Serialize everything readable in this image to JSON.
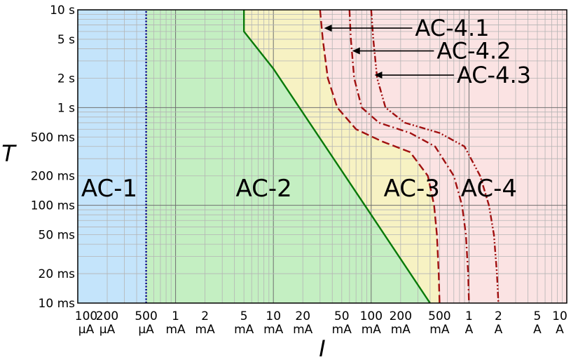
{
  "chart_data": {
    "type": "area",
    "title": "",
    "xlabel": "I",
    "ylabel": "T",
    "x_scale": "log",
    "y_scale": "log",
    "xlim_mA": [
      0.1,
      10000
    ],
    "ylim_ms": [
      10,
      10000
    ],
    "x_ticks": [
      {
        "value_mA": 0.1,
        "line1": "100",
        "line2": "μA"
      },
      {
        "value_mA": 0.2,
        "line1": "200",
        "line2": "μA"
      },
      {
        "value_mA": 0.5,
        "line1": "500",
        "line2": "μA"
      },
      {
        "value_mA": 1,
        "line1": "1",
        "line2": "mA"
      },
      {
        "value_mA": 2,
        "line1": "2",
        "line2": "mA"
      },
      {
        "value_mA": 5,
        "line1": "5",
        "line2": "mA"
      },
      {
        "value_mA": 10,
        "line1": "10",
        "line2": "mA"
      },
      {
        "value_mA": 20,
        "line1": "20",
        "line2": "mA"
      },
      {
        "value_mA": 50,
        "line1": "50",
        "line2": "mA"
      },
      {
        "value_mA": 100,
        "line1": "100",
        "line2": "mA"
      },
      {
        "value_mA": 200,
        "line1": "200",
        "line2": "mA"
      },
      {
        "value_mA": 500,
        "line1": "500",
        "line2": "mA"
      },
      {
        "value_mA": 1000,
        "line1": "1",
        "line2": "A"
      },
      {
        "value_mA": 2000,
        "line1": "2",
        "line2": "A"
      },
      {
        "value_mA": 5000,
        "line1": "5",
        "line2": "A"
      },
      {
        "value_mA": 10000,
        "line1": "10",
        "line2": "A"
      }
    ],
    "y_ticks": [
      {
        "value_ms": 10,
        "label": "10 ms"
      },
      {
        "value_ms": 20,
        "label": "20 ms"
      },
      {
        "value_ms": 50,
        "label": "50 ms"
      },
      {
        "value_ms": 100,
        "label": "100 ms"
      },
      {
        "value_ms": 200,
        "label": "200 ms"
      },
      {
        "value_ms": 500,
        "label": "500 ms"
      },
      {
        "value_ms": 1000,
        "label": "1 s"
      },
      {
        "value_ms": 2000,
        "label": "2 s"
      },
      {
        "value_ms": 5000,
        "label": "5 s"
      },
      {
        "value_ms": 10000,
        "label": "10 s"
      }
    ],
    "grid": true,
    "zones": [
      {
        "label": "AC-1",
        "color": "#c4e4fb",
        "label_at": {
          "I_mA": 0.21,
          "T_ms": 150
        }
      },
      {
        "label": "AC-2",
        "color": "#c4efc2",
        "label_at": {
          "I_mA": 8,
          "T_ms": 150
        }
      },
      {
        "label": "AC-3",
        "color": "#f7f2c3",
        "label_at": {
          "I_mA": 260,
          "T_ms": 150
        }
      },
      {
        "label": "AC-4",
        "color": "#fbe3e3",
        "label_at": {
          "I_mA": 1600,
          "T_ms": 150
        }
      }
    ],
    "boundaries": [
      {
        "name": "a",
        "color": "#00008b",
        "style": "dotted",
        "points": [
          [
            0.5,
            10
          ],
          [
            0.5,
            10000
          ]
        ]
      },
      {
        "name": "b",
        "color": "#0a7a0a",
        "style": "solid",
        "points": [
          [
            5,
            10000
          ],
          [
            5,
            6000
          ],
          [
            10,
            2500
          ],
          [
            100,
            80
          ],
          [
            400,
            10
          ]
        ]
      },
      {
        "name": "c1",
        "color": "#a01010",
        "style": "dashed",
        "points": [
          [
            30,
            10000
          ],
          [
            32,
            5000
          ],
          [
            36,
            2000
          ],
          [
            45,
            1000
          ],
          [
            70,
            600
          ],
          [
            130,
            450
          ],
          [
            250,
            350
          ],
          [
            380,
            200
          ],
          [
            440,
            100
          ],
          [
            470,
            50
          ],
          [
            490,
            20
          ],
          [
            500,
            10
          ]
        ]
      },
      {
        "name": "c2",
        "color": "#a01010",
        "style": "dashdot",
        "points": [
          [
            60,
            10000
          ],
          [
            62,
            5000
          ],
          [
            67,
            2000
          ],
          [
            80,
            1000
          ],
          [
            120,
            700
          ],
          [
            250,
            550
          ],
          [
            450,
            400
          ],
          [
            700,
            200
          ],
          [
            850,
            100
          ],
          [
            930,
            50
          ],
          [
            980,
            20
          ],
          [
            1000,
            10
          ]
        ]
      },
      {
        "name": "c3",
        "color": "#a01010",
        "style": "dashdotdot",
        "points": [
          [
            100,
            10000
          ],
          [
            105,
            5000
          ],
          [
            115,
            2000
          ],
          [
            140,
            1000
          ],
          [
            220,
            700
          ],
          [
            500,
            550
          ],
          [
            900,
            400
          ],
          [
            1300,
            200
          ],
          [
            1600,
            100
          ],
          [
            1800,
            50
          ],
          [
            1930,
            20
          ],
          [
            2000,
            10
          ]
        ]
      }
    ],
    "annotations": [
      {
        "text": "AC-4.1",
        "arrow_to": {
          "I_mA": 33,
          "T_ms": 6500
        },
        "text_at": {
          "I_mA": 300,
          "T_ms": 6500
        }
      },
      {
        "text": "AC-4.2",
        "arrow_to": {
          "I_mA": 64,
          "T_ms": 3800
        },
        "text_at": {
          "I_mA": 500,
          "T_ms": 3800
        }
      },
      {
        "text": "AC-4.3",
        "arrow_to": {
          "I_mA": 108,
          "T_ms": 2150
        },
        "text_at": {
          "I_mA": 800,
          "T_ms": 2150
        }
      }
    ]
  }
}
